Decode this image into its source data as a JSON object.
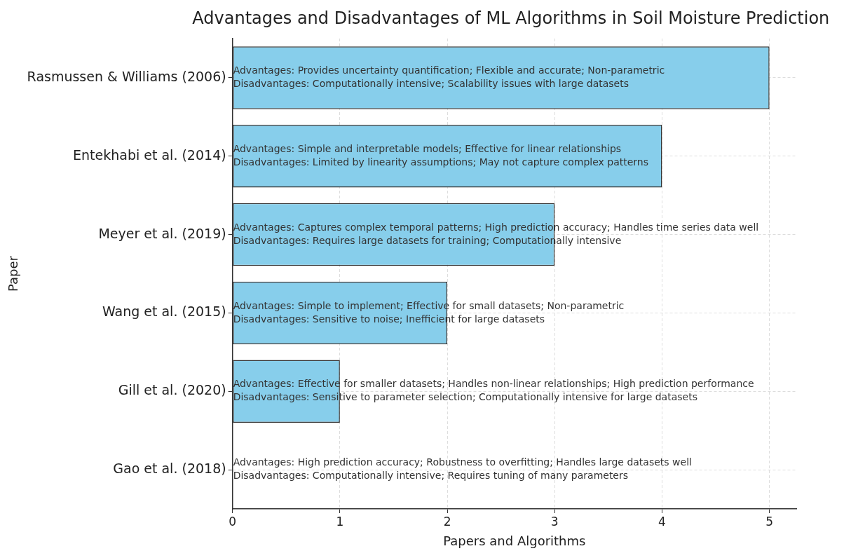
{
  "chart_data": {
    "type": "bar",
    "orientation": "horizontal",
    "title": "Advantages and Disadvantages of ML Algorithms in Soil Moisture Prediction",
    "xlabel": "Papers and Algorithms",
    "ylabel": "Paper",
    "categories": [
      "Rasmussen & Williams (2006)",
      "Entekhabi et al. (2014)",
      "Meyer et al. (2019)",
      "Wang et al. (2015)",
      "Gill et al. (2020)",
      "Gao et al. (2018)"
    ],
    "values": [
      5,
      4,
      3,
      2,
      1,
      0
    ],
    "color": "#87ceeb",
    "xlim": [
      0,
      5.25
    ],
    "xticks": [
      0,
      1,
      2,
      3,
      4,
      5
    ],
    "grid": true,
    "legend": false,
    "annotations": [
      "Advantages: Provides uncertainty quantification; Flexible and accurate; Non-parametric\nDisadvantages: Computationally intensive; Scalability issues with large datasets",
      "Advantages: Simple and interpretable models; Effective for linear relationships\nDisadvantages: Limited by linearity assumptions; May not capture complex patterns",
      "Advantages: Captures complex temporal patterns; High prediction accuracy; Handles time series data well\nDisadvantages: Requires large datasets for training; Computationally intensive",
      "Advantages: Simple to implement; Effective for small datasets; Non-parametric\nDisadvantages: Sensitive to noise; Inefficient for large datasets",
      "Advantages: Effective for smaller datasets; Handles non-linear relationships; High prediction performance\nDisadvantages: Sensitive to parameter selection; Computationally intensive for large datasets",
      "Advantages: High prediction accuracy; Robustness to overfitting; Handles large datasets well\nDisadvantages: Computationally intensive; Requires tuning of many parameters"
    ]
  }
}
